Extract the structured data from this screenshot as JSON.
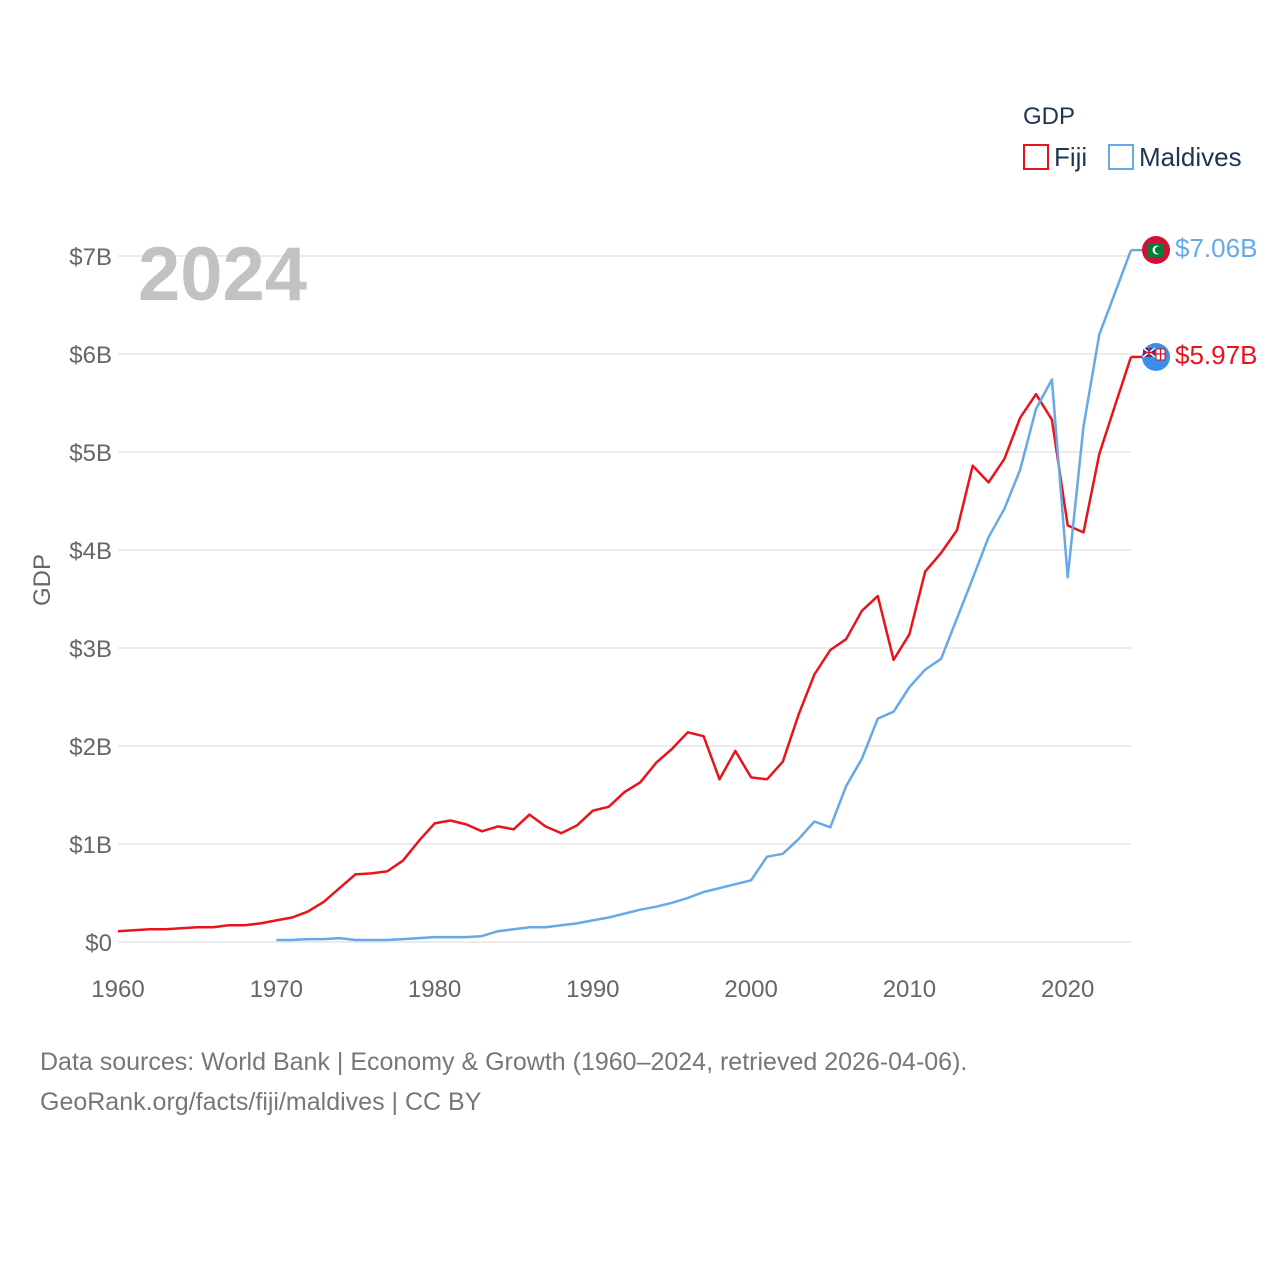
{
  "legend": {
    "title": "GDP",
    "items": [
      {
        "label": "Fiji",
        "color": "#e8141c"
      },
      {
        "label": "Maldives",
        "color": "#66a9e6"
      }
    ]
  },
  "year_label": "2024",
  "end_labels": {
    "fiji": "$5.97B",
    "maldives": "$7.06B"
  },
  "source": {
    "line1": "Data sources: World Bank | Economy & Growth (1960–2024, retrieved 2026-04-06).",
    "line2": "GeoRank.org/facts/fiji/maldives | CC BY"
  },
  "chart_data": {
    "type": "line",
    "title": "",
    "xlabel": "",
    "ylabel": "GDP",
    "xlim": [
      1960,
      2024
    ],
    "ylim": [
      0,
      7
    ],
    "grid": true,
    "legend_position": "top-right",
    "x_ticks": [
      1960,
      1970,
      1980,
      1990,
      2000,
      2010,
      2020
    ],
    "y_ticks": [
      {
        "value": 0,
        "label": "$0"
      },
      {
        "value": 1,
        "label": "$1B"
      },
      {
        "value": 2,
        "label": "$2B"
      },
      {
        "value": 3,
        "label": "$3B"
      },
      {
        "value": 4,
        "label": "$4B"
      },
      {
        "value": 5,
        "label": "$5B"
      },
      {
        "value": 6,
        "label": "$6B"
      },
      {
        "value": 7,
        "label": "$7B"
      }
    ],
    "units": "billions USD",
    "series": [
      {
        "name": "Fiji",
        "color": "#e8141c",
        "x": [
          1960,
          1961,
          1962,
          1963,
          1964,
          1965,
          1966,
          1967,
          1968,
          1969,
          1970,
          1971,
          1972,
          1973,
          1974,
          1975,
          1976,
          1977,
          1978,
          1979,
          1980,
          1981,
          1982,
          1983,
          1984,
          1985,
          1986,
          1987,
          1988,
          1989,
          1990,
          1991,
          1992,
          1993,
          1994,
          1995,
          1996,
          1997,
          1998,
          1999,
          2000,
          2001,
          2002,
          2003,
          2004,
          2005,
          2006,
          2007,
          2008,
          2009,
          2010,
          2011,
          2012,
          2013,
          2014,
          2015,
          2016,
          2017,
          2018,
          2019,
          2020,
          2021,
          2022,
          2023,
          2024
        ],
        "values": [
          0.11,
          0.12,
          0.13,
          0.13,
          0.14,
          0.15,
          0.15,
          0.17,
          0.17,
          0.19,
          0.22,
          0.25,
          0.31,
          0.41,
          0.55,
          0.69,
          0.7,
          0.72,
          0.83,
          1.03,
          1.21,
          1.24,
          1.2,
          1.13,
          1.18,
          1.15,
          1.3,
          1.18,
          1.11,
          1.19,
          1.34,
          1.38,
          1.53,
          1.63,
          1.83,
          1.97,
          2.14,
          2.1,
          1.66,
          1.95,
          1.68,
          1.66,
          1.84,
          2.32,
          2.73,
          2.98,
          3.09,
          3.38,
          3.53,
          2.88,
          3.14,
          3.78,
          3.97,
          4.2,
          4.86,
          4.69,
          4.93,
          5.35,
          5.59,
          5.33,
          4.25,
          4.18,
          4.98,
          5.48,
          5.97
        ]
      },
      {
        "name": "Maldives",
        "color": "#66a9e6",
        "x": [
          1970,
          1971,
          1972,
          1973,
          1974,
          1975,
          1976,
          1977,
          1978,
          1979,
          1980,
          1981,
          1982,
          1983,
          1984,
          1985,
          1986,
          1987,
          1988,
          1989,
          1990,
          1991,
          1992,
          1993,
          1994,
          1995,
          1996,
          1997,
          1998,
          1999,
          2000,
          2001,
          2002,
          2003,
          2004,
          2005,
          2006,
          2007,
          2008,
          2009,
          2010,
          2011,
          2012,
          2013,
          2014,
          2015,
          2016,
          2017,
          2018,
          2019,
          2020,
          2021,
          2022,
          2023,
          2024
        ],
        "values": [
          0.02,
          0.02,
          0.03,
          0.03,
          0.04,
          0.02,
          0.02,
          0.02,
          0.03,
          0.04,
          0.05,
          0.05,
          0.05,
          0.06,
          0.11,
          0.13,
          0.15,
          0.15,
          0.17,
          0.19,
          0.22,
          0.25,
          0.29,
          0.33,
          0.36,
          0.4,
          0.45,
          0.51,
          0.55,
          0.59,
          0.63,
          0.87,
          0.9,
          1.05,
          1.23,
          1.17,
          1.59,
          1.87,
          2.28,
          2.35,
          2.6,
          2.78,
          2.89,
          3.3,
          3.71,
          4.13,
          4.42,
          4.82,
          5.44,
          5.74,
          3.72,
          5.26,
          6.2,
          6.63,
          7.06
        ]
      }
    ]
  }
}
